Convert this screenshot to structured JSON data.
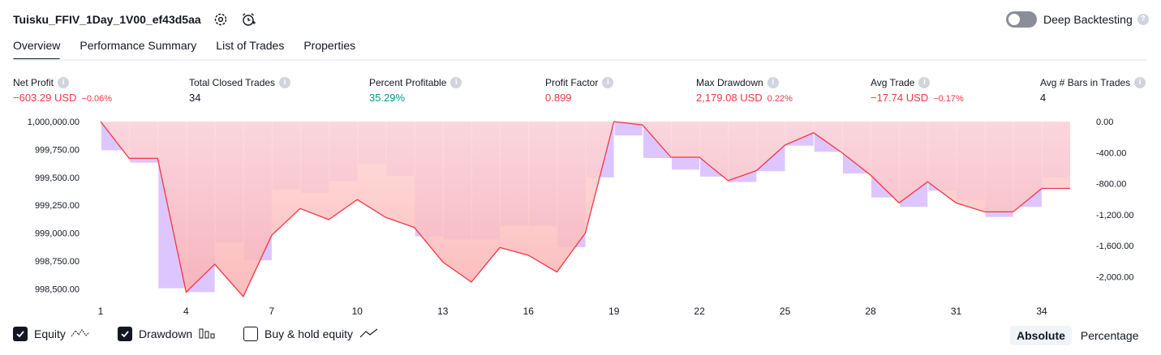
{
  "header": {
    "title": "Tuisku_FFIV_1Day_1V00_ef43d5aa",
    "deep_backtesting_label": "Deep Backtesting",
    "deep_backtesting_enabled": false
  },
  "tabs": [
    {
      "label": "Overview",
      "active": true
    },
    {
      "label": "Performance Summary",
      "active": false
    },
    {
      "label": "List of Trades",
      "active": false
    },
    {
      "label": "Properties",
      "active": false
    }
  ],
  "metrics": [
    {
      "label": "Net Profit",
      "value": "−603.29 USD",
      "pct": "−0.06%",
      "tone": "neg"
    },
    {
      "label": "Total Closed Trades",
      "value": "34",
      "pct": "",
      "tone": "neutral"
    },
    {
      "label": "Percent Profitable",
      "value": "35.29%",
      "pct": "",
      "tone": "pos"
    },
    {
      "label": "Profit Factor",
      "value": "0.899",
      "pct": "",
      "tone": "neg"
    },
    {
      "label": "Max Drawdown",
      "value": "2,179.08 USD",
      "pct": "0.22%",
      "tone": "neg"
    },
    {
      "label": "Avg Trade",
      "value": "−17.74 USD",
      "pct": "−0.17%",
      "tone": "neg"
    },
    {
      "label": "Avg # Bars in Trades",
      "value": "4",
      "pct": "",
      "tone": "neutral"
    }
  ],
  "legend": {
    "equity_label": "Equity",
    "equity_checked": true,
    "drawdown_label": "Drawdown",
    "drawdown_checked": true,
    "buyhold_label": "Buy & hold equity",
    "buyhold_checked": false
  },
  "mode": {
    "absolute_label": "Absolute",
    "percentage_label": "Percentage",
    "selected": "Absolute"
  },
  "colors": {
    "equity_line": "#f23645",
    "drawdown_bar": "#d1b3ff",
    "negative": "#f23645",
    "positive": "#089981"
  },
  "chart_data": {
    "type": "line",
    "x_ticks": [
      "1",
      "4",
      "7",
      "10",
      "13",
      "16",
      "19",
      "22",
      "25",
      "28",
      "31",
      "34"
    ],
    "y_left_ticks": [
      "1,000,000.00",
      "999,750.00",
      "999,500.00",
      "999,250.00",
      "999,000.00",
      "998,750.00",
      "998,500.00"
    ],
    "y_left_range": [
      998400,
      1000000
    ],
    "y_right_ticks": [
      "0.00",
      "-400.00",
      "-800.00",
      "-1,200.00",
      "-1,600.00",
      "-2,000.00"
    ],
    "y_right_range": [
      -2300,
      0
    ],
    "x": [
      1,
      2,
      3,
      4,
      5,
      6,
      7,
      8,
      9,
      10,
      11,
      12,
      13,
      14,
      15,
      16,
      17,
      18,
      19,
      20,
      21,
      22,
      23,
      24,
      25,
      26,
      27,
      28,
      29,
      30,
      31,
      32,
      33,
      34,
      35
    ],
    "series": [
      {
        "name": "Equity",
        "values": [
          1000000,
          999670,
          999670,
          998470,
          998720,
          998430,
          998980,
          999220,
          999120,
          999300,
          999140,
          999050,
          998740,
          998560,
          998870,
          998800,
          998650,
          999000,
          1000000,
          999970,
          999680,
          999680,
          999470,
          999560,
          999790,
          999900,
          999720,
          999520,
          999270,
          999460,
          999270,
          999190,
          999190,
          999400,
          999400
        ]
      },
      {
        "name": "Drawdown",
        "values": [
          0,
          -370,
          -530,
          -2150,
          -2200,
          -1560,
          -1790,
          -880,
          -920,
          -770,
          -550,
          -700,
          -1480,
          -1520,
          -1520,
          -1350,
          -1350,
          -1620,
          -720,
          -180,
          -470,
          -620,
          -710,
          -780,
          -640,
          -310,
          -390,
          -670,
          -980,
          -1100,
          -890,
          -1010,
          -1230,
          -1100,
          -720
        ]
      }
    ]
  }
}
